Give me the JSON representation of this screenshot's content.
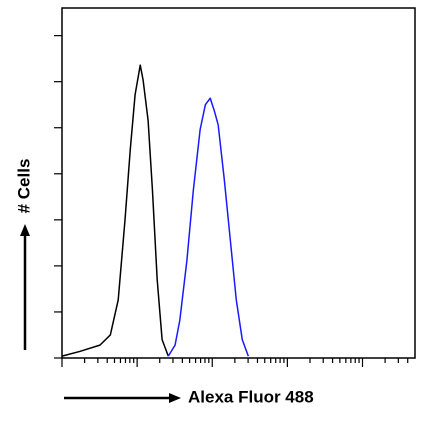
{
  "chart_data": {
    "type": "line",
    "x_label": "Alexa Fluor 488",
    "y_label": "# Cells",
    "log_x": true,
    "xlim": [
      1,
      50000
    ],
    "xticks": [
      1,
      2,
      3,
      4,
      5,
      6,
      7,
      8,
      9,
      10,
      20,
      30,
      40,
      50,
      60,
      70,
      80,
      90,
      100,
      200,
      300,
      400,
      500,
      600,
      700,
      800,
      900,
      1000,
      2000,
      3000,
      4000,
      5000,
      6000,
      7000,
      8000,
      9000,
      10000,
      20000,
      30000,
      40000
    ],
    "ylim": [
      0,
      380
    ],
    "yticks": [
      0,
      50,
      100,
      150,
      200,
      250,
      300,
      350
    ],
    "series": [
      {
        "color": "#000000",
        "x": [
          1,
          1.7,
          3.2,
          4.4,
          5.6,
          6.9,
          8.1,
          9.4,
          11,
          12,
          14,
          16,
          18.5,
          21.5,
          26
        ],
        "values": [
          2,
          7,
          14,
          25,
          63,
          150,
          226,
          286,
          318,
          302,
          258,
          182,
          85,
          20,
          2
        ]
      },
      {
        "color": "#1a1aff",
        "x": [
          26,
          32,
          37,
          46,
          56,
          69,
          81,
          94,
          106,
          120,
          145,
          174,
          209,
          251,
          302
        ],
        "values": [
          2,
          14,
          41,
          106,
          182,
          248,
          275,
          282,
          269,
          253,
          193,
          128,
          63,
          20,
          2
        ]
      }
    ]
  }
}
